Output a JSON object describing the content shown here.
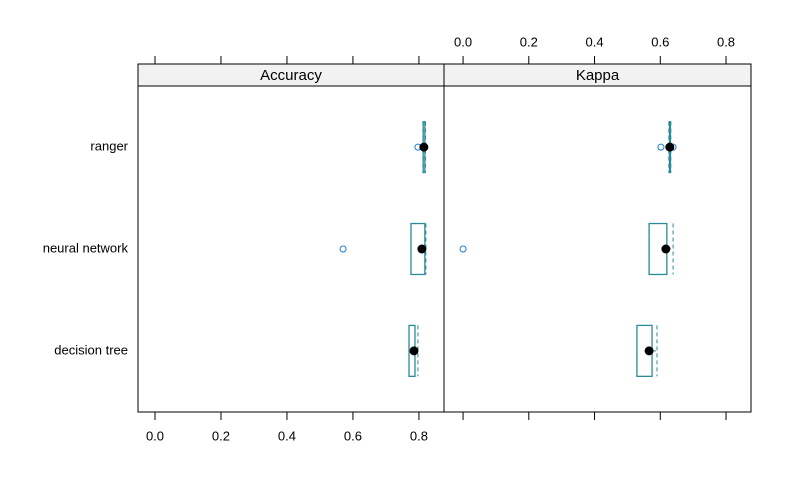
{
  "chart_data": {
    "type": "box",
    "categories": [
      "ranger",
      "neural network",
      "decision tree"
    ],
    "box_color": "#2a8a99",
    "outlier_color": "#1f7fd0",
    "median_color": "#000000",
    "panels": [
      {
        "title": "Accuracy",
        "xlim": [
          -0.0515,
          0.876
        ],
        "xticks": [
          {
            "value": 0,
            "label": "0.0"
          },
          0.2,
          0.4,
          0.6,
          0.8
        ],
        "tick_labels": "bottom",
        "boxes": [
          {
            "whisker_low": 0.812,
            "q1": 0.813,
            "median": 0.815,
            "q3": 0.818,
            "whisker_high": 0.82,
            "outliers": [
              0.797
            ]
          },
          {
            "whisker_low": 0.776,
            "q1": 0.776,
            "median": 0.809,
            "q3": 0.818,
            "whisker_high": 0.821,
            "outliers": [
              0.57
            ]
          },
          {
            "whisker_low": 0.77,
            "q1": 0.77,
            "median": 0.785,
            "q3": 0.788,
            "whisker_high": 0.797,
            "outliers": []
          }
        ]
      },
      {
        "title": "Kappa",
        "xlim": [
          -0.058,
          0.876
        ],
        "xticks": [
          {
            "value": 0,
            "label": "0.0"
          },
          0.2,
          0.4,
          0.6,
          0.8
        ],
        "tick_labels": "top",
        "boxes": [
          {
            "whisker_low": 0.626,
            "q1": 0.628,
            "median": 0.629,
            "q3": 0.631,
            "whisker_high": 0.632,
            "outliers": [
              0.602,
              0.639
            ]
          },
          {
            "whisker_low": 0.566,
            "q1": 0.566,
            "median": 0.617,
            "q3": 0.62,
            "whisker_high": 0.639,
            "outliers": [
              0.0
            ]
          },
          {
            "whisker_low": 0.529,
            "q1": 0.529,
            "median": 0.566,
            "q3": 0.575,
            "whisker_high": 0.59,
            "outliers": []
          }
        ]
      }
    ]
  }
}
